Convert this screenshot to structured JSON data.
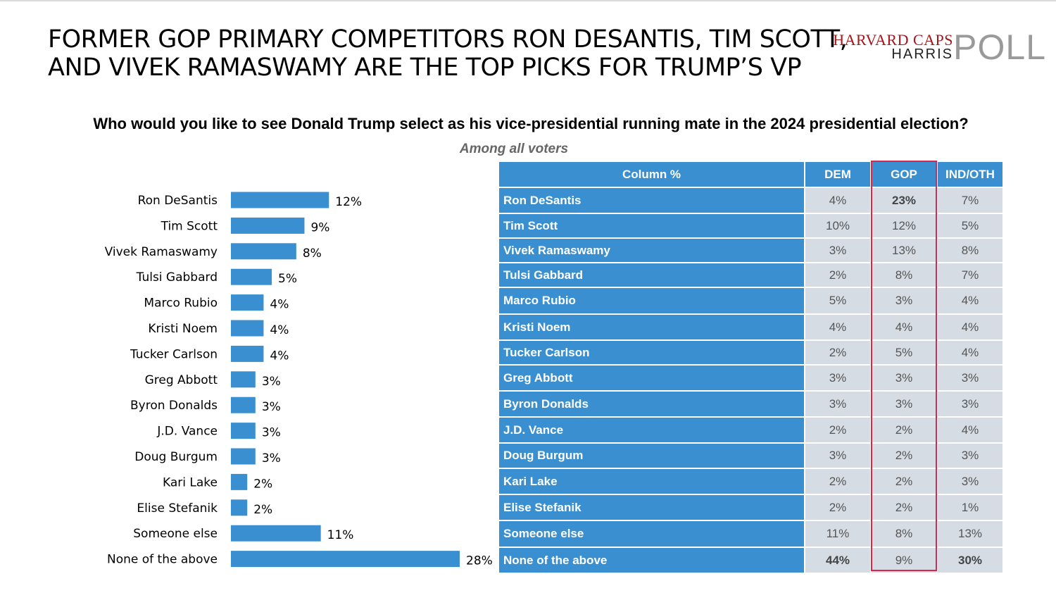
{
  "headline": {
    "line1": "FORMER GOP PRIMARY COMPETITORS RON DESANTIS, TIM SCOTT,",
    "line2": "AND VIVEK RAMASWAMY ARE THE TOP PICKS FOR TRUMP’S VP"
  },
  "logo": {
    "line1": "HARVARD CAPS",
    "line2": "HARRIS",
    "big": "POLL"
  },
  "question": "Who would you like to see Donald Trump select as his vice-presidential running mate in the 2024 presidential election?",
  "subtitle": "Among all voters",
  "colors": {
    "bar": "#3a8fd1",
    "table_header": "#3a8fd1",
    "cell_bg": "#d6dce4",
    "highlight": "#d9264a"
  },
  "chart_data": {
    "type": "bar",
    "orientation": "horizontal",
    "title": "Who would you like to see Donald Trump select as his vice-presidential running mate in the 2024 presidential election?",
    "subtitle": "Among all voters",
    "categories": [
      "Ron DeSantis",
      "Tim Scott",
      "Vivek Ramaswamy",
      "Tulsi Gabbard",
      "Marco Rubio",
      "Kristi Noem",
      "Tucker Carlson",
      "Greg Abbott",
      "Byron Donalds",
      "J.D. Vance",
      "Doug Burgum",
      "Kari Lake",
      "Elise Stefanik",
      "Someone else",
      "None of the above"
    ],
    "values": [
      12,
      9,
      8,
      5,
      4,
      4,
      4,
      3,
      3,
      3,
      3,
      2,
      2,
      11,
      28
    ],
    "labels": [
      "12%",
      "9%",
      "8%",
      "5%",
      "4%",
      "4%",
      "4%",
      "3%",
      "3%",
      "3%",
      "3%",
      "2%",
      "2%",
      "11%",
      "28%"
    ],
    "xlim": [
      0,
      28
    ],
    "grid": false
  },
  "table": {
    "headers": [
      "Column %",
      "DEM",
      "GOP",
      "IND/OTH"
    ],
    "rows": [
      {
        "name": "Ron DeSantis",
        "dem": "4%",
        "gop": "23%",
        "ind": "7%",
        "bold": [
          "gop"
        ]
      },
      {
        "name": "Tim Scott",
        "dem": "10%",
        "gop": "12%",
        "ind": "5%",
        "bold": []
      },
      {
        "name": "Vivek Ramaswamy",
        "dem": "3%",
        "gop": "13%",
        "ind": "8%",
        "bold": []
      },
      {
        "name": "Tulsi Gabbard",
        "dem": "2%",
        "gop": "8%",
        "ind": "7%",
        "bold": []
      },
      {
        "name": "Marco Rubio",
        "dem": "5%",
        "gop": "3%",
        "ind": "4%",
        "bold": []
      },
      {
        "name": "Kristi Noem",
        "dem": "4%",
        "gop": "4%",
        "ind": "4%",
        "bold": []
      },
      {
        "name": "Tucker Carlson",
        "dem": "2%",
        "gop": "5%",
        "ind": "4%",
        "bold": []
      },
      {
        "name": "Greg Abbott",
        "dem": "3%",
        "gop": "3%",
        "ind": "3%",
        "bold": []
      },
      {
        "name": "Byron Donalds",
        "dem": "3%",
        "gop": "3%",
        "ind": "3%",
        "bold": []
      },
      {
        "name": "J.D. Vance",
        "dem": "2%",
        "gop": "2%",
        "ind": "4%",
        "bold": []
      },
      {
        "name": "Doug Burgum",
        "dem": "3%",
        "gop": "2%",
        "ind": "3%",
        "bold": []
      },
      {
        "name": "Kari Lake",
        "dem": "2%",
        "gop": "2%",
        "ind": "3%",
        "bold": []
      },
      {
        "name": "Elise Stefanik",
        "dem": "2%",
        "gop": "2%",
        "ind": "1%",
        "bold": []
      },
      {
        "name": "Someone else",
        "dem": "11%",
        "gop": "8%",
        "ind": "13%",
        "bold": []
      },
      {
        "name": "None of the above",
        "dem": "44%",
        "gop": "9%",
        "ind": "30%",
        "bold": [
          "dem",
          "ind"
        ]
      }
    ]
  }
}
